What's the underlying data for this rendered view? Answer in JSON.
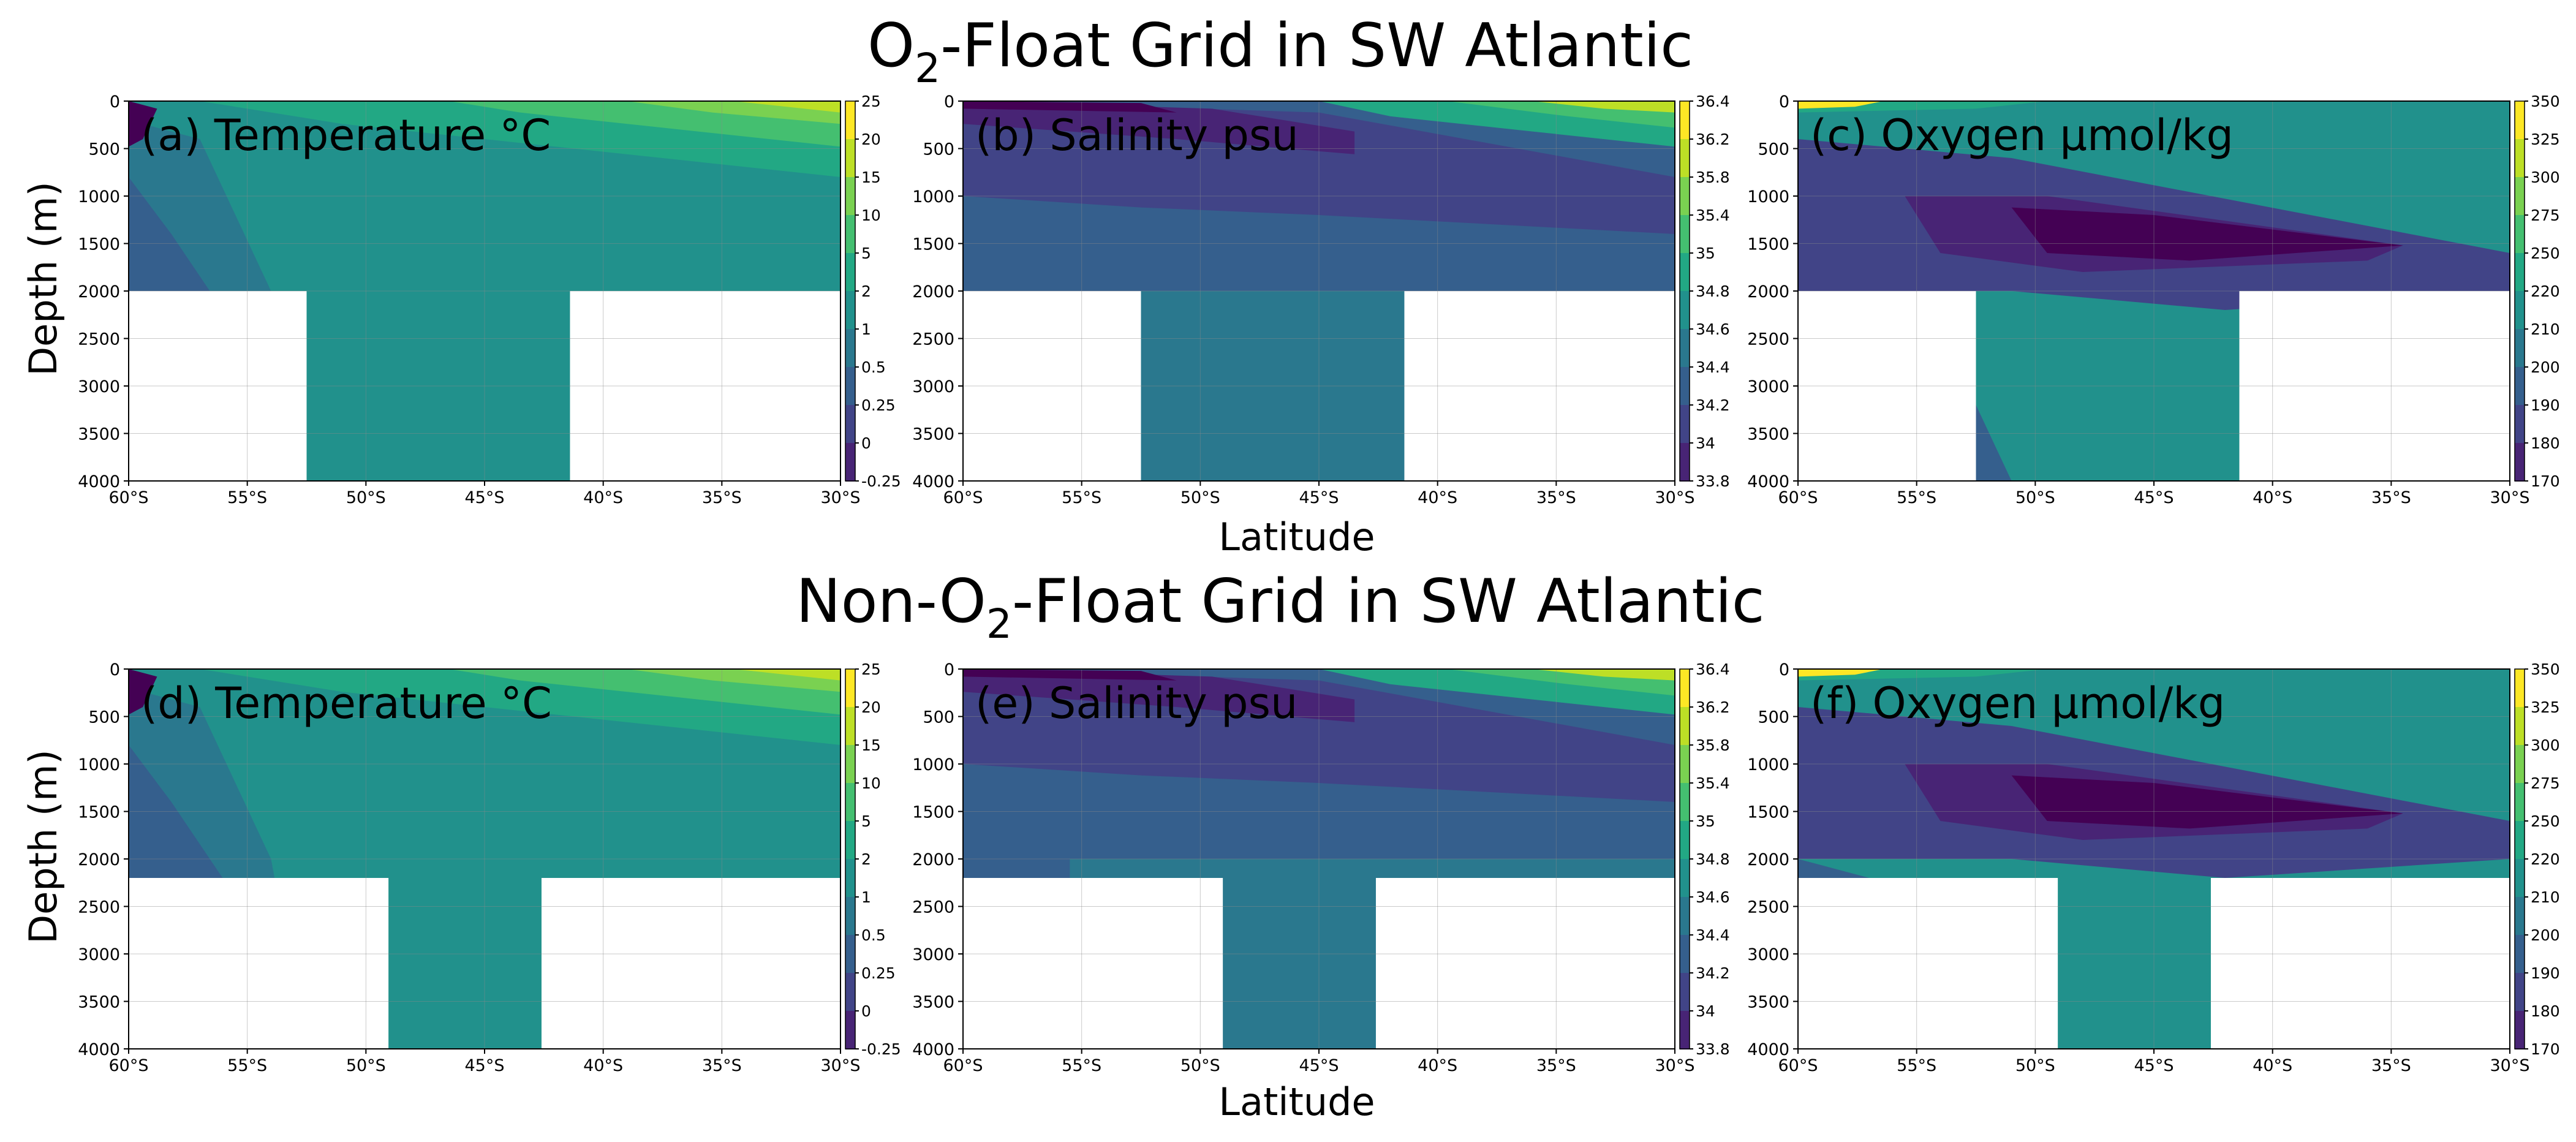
{
  "titles": {
    "top": {
      "pre": "O",
      "sub": "2",
      "post": "-Float Grid in SW Atlantic"
    },
    "bottom": {
      "pre": "Non-O",
      "sub": "2",
      "post": "-Float Grid in SW Atlantic"
    }
  },
  "axis_labels": {
    "y": "Depth (m)",
    "x": "Latitude"
  },
  "x_ticks": [
    "60°S",
    "55°S",
    "50°S",
    "45°S",
    "40°S",
    "35°S",
    "30°S"
  ],
  "y_ticks": [
    "0",
    "500",
    "1000",
    "1500",
    "2000",
    "2500",
    "3000",
    "3500",
    "4000"
  ],
  "colorbars": {
    "temperature": [
      "25",
      "20",
      "15",
      "10",
      "5",
      "2",
      "1",
      "0.5",
      "0.25",
      "0",
      "-0.25"
    ],
    "salinity": [
      "36.4",
      "36.2",
      "35.8",
      "35.4",
      "35",
      "34.8",
      "34.6",
      "34.4",
      "34.2",
      "34",
      "33.8"
    ],
    "oxygen": [
      "350",
      "325",
      "300",
      "275",
      "250",
      "220",
      "210",
      "200",
      "190",
      "180",
      "170"
    ]
  },
  "panels": [
    {
      "label": "(a) Temperature °C",
      "row": 0,
      "col": 0,
      "variable": "temperature"
    },
    {
      "label": "(b) Salinity psu",
      "row": 0,
      "col": 1,
      "variable": "salinity"
    },
    {
      "label": "(c) Oxygen µmol/kg",
      "row": 0,
      "col": 2,
      "variable": "oxygen"
    },
    {
      "label": "(d) Temperature °C",
      "row": 1,
      "col": 0,
      "variable": "temperature"
    },
    {
      "label": "(e) Salinity psu",
      "row": 1,
      "col": 1,
      "variable": "salinity"
    },
    {
      "label": "(f) Oxygen µmol/kg",
      "row": 1,
      "col": 2,
      "variable": "oxygen"
    }
  ],
  "colors": {
    "viridis": [
      "#440154",
      "#482475",
      "#414487",
      "#355f8d",
      "#2a788e",
      "#21918c",
      "#22a884",
      "#44bf70",
      "#7ad151",
      "#bddf26",
      "#fde725"
    ]
  },
  "chart_data": [
    {
      "type": "heatmap",
      "title": "(a) Temperature °C",
      "xlabel": "Latitude",
      "ylabel": "Depth (m)",
      "xlim": [
        -60,
        -30
      ],
      "ylim": [
        4000,
        0
      ],
      "grid": true,
      "colorbar_levels": [
        -0.25,
        0,
        0.25,
        0.5,
        1,
        2,
        5,
        10,
        15,
        20,
        25
      ],
      "no_data_below_m": {
        "latitudes": [
          -60,
          -52.5,
          -41.5,
          -30
        ],
        "depth_limit_m": [
          2000,
          4000,
          2000
        ]
      }
    },
    {
      "type": "heatmap",
      "title": "(b) Salinity psu",
      "xlabel": "Latitude",
      "ylabel": "Depth (m)",
      "xlim": [
        -60,
        -30
      ],
      "ylim": [
        4000,
        0
      ],
      "grid": true,
      "colorbar_levels": [
        33.8,
        34,
        34.2,
        34.4,
        34.6,
        34.8,
        35,
        35.4,
        35.8,
        36.2,
        36.4
      ]
    },
    {
      "type": "heatmap",
      "title": "(c) Oxygen µmol/kg",
      "xlabel": "Latitude",
      "ylabel": "Depth (m)",
      "xlim": [
        -60,
        -30
      ],
      "ylim": [
        4000,
        0
      ],
      "grid": true,
      "colorbar_levels": [
        170,
        180,
        190,
        200,
        210,
        220,
        250,
        275,
        300,
        325,
        350
      ]
    },
    {
      "type": "heatmap",
      "title": "(d) Temperature °C",
      "xlabel": "Latitude",
      "ylabel": "Depth (m)",
      "xlim": [
        -60,
        -30
      ],
      "ylim": [
        4000,
        0
      ],
      "grid": true,
      "colorbar_levels": [
        -0.25,
        0,
        0.25,
        0.5,
        1,
        2,
        5,
        10,
        15,
        20,
        25
      ],
      "no_data_below_m": {
        "latitudes": [
          -60,
          -49,
          -42.5,
          -30
        ],
        "depth_limit_m": [
          2200,
          4000,
          2200
        ]
      }
    },
    {
      "type": "heatmap",
      "title": "(e) Salinity psu",
      "xlabel": "Latitude",
      "ylabel": "Depth (m)",
      "xlim": [
        -60,
        -30
      ],
      "ylim": [
        4000,
        0
      ],
      "grid": true,
      "colorbar_levels": [
        33.8,
        34,
        34.2,
        34.4,
        34.6,
        34.8,
        35,
        35.4,
        35.8,
        36.2,
        36.4
      ]
    },
    {
      "type": "heatmap",
      "title": "(f) Oxygen µmol/kg",
      "xlabel": "Latitude",
      "ylabel": "Depth (m)",
      "xlim": [
        -60,
        -30
      ],
      "ylim": [
        4000,
        0
      ],
      "grid": true,
      "colorbar_levels": [
        170,
        180,
        190,
        200,
        210,
        220,
        250,
        275,
        300,
        325,
        350
      ]
    }
  ]
}
